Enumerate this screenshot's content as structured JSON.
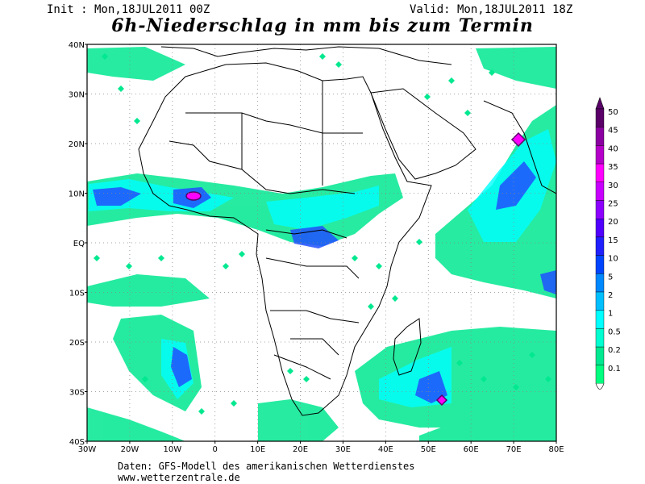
{
  "header": {
    "init_text": "Init : Mon,18JUL2011 00Z",
    "valid_text": "Valid: Mon,18JUL2011 18Z",
    "title": "6h-Niederschlag in mm bis zum Termin"
  },
  "footer": {
    "line1": "Daten: GFS-Modell des amerikanischen Wetterdienstes",
    "line2": "www.wetterzentrale.de"
  },
  "map": {
    "lon_labels": [
      "30W",
      "20W",
      "10W",
      "0",
      "10E",
      "20E",
      "30E",
      "40E",
      "50E",
      "60E",
      "70E",
      "80E"
    ],
    "lat_labels": [
      "40N",
      "30N",
      "20N",
      "10N",
      "EQ",
      "10S",
      "20S",
      "30S",
      "40S"
    ],
    "lon_range": [
      -30,
      80
    ],
    "lat_range": [
      -40,
      40
    ]
  },
  "legend": {
    "levels": [
      "50",
      "45",
      "40",
      "35",
      "30",
      "25",
      "20",
      "15",
      "10",
      "5",
      "2",
      "1",
      "0.5",
      "0.2",
      "0.1"
    ],
    "colors": [
      "#5a0068",
      "#8a00a0",
      "#b400c8",
      "#ff00ff",
      "#c800ff",
      "#8c00ff",
      "#5000ff",
      "#2020ff",
      "#0044ff",
      "#0088ff",
      "#00bfff",
      "#00ffff",
      "#00ffd0",
      "#00e890",
      "#00ff7f"
    ]
  }
}
